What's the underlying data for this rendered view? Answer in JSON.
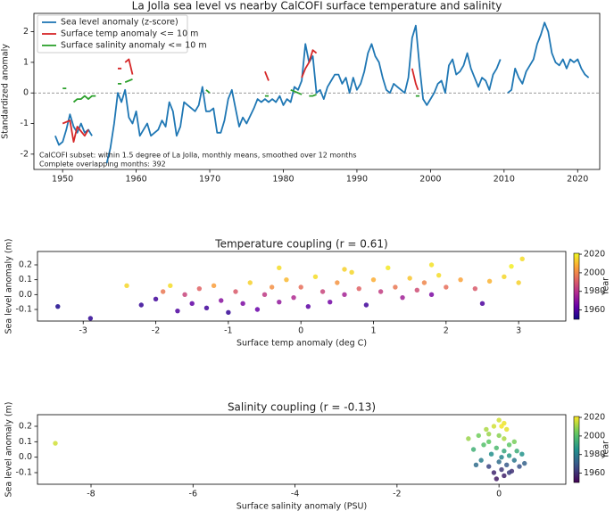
{
  "chart_data": [
    {
      "type": "line",
      "title": "La Jolla sea level vs nearby CalCOFI surface temperature and salinity",
      "ylabel": "Standardized anomaly",
      "xlim": [
        1946.1,
        2023.0
      ],
      "xticks": [
        1950,
        1960,
        1970,
        1980,
        1990,
        2000,
        2010,
        2020
      ],
      "ylim": [
        -2.5,
        2.6
      ],
      "yticks": [
        -2,
        -1,
        0,
        1,
        2
      ],
      "reference_line": 0,
      "legend": "upper left",
      "annotations": [
        "CalCOFI subset: within 1.5 degree of La Jolla, monthly means, smoothed over 12 months",
        "Complete overlapping months: 392"
      ],
      "series": [
        {
          "name": "Sea level anomaly (z-score)",
          "color": "#1f77b4",
          "x": [
            1949,
            1949.5,
            1950,
            1950.5,
            1951,
            1951.5,
            1952,
            1952.5,
            1953,
            1953.5,
            1954,
            1955,
            1956,
            1956.5,
            1957,
            1957.5,
            1958,
            1958.5,
            1959,
            1959.5,
            1960,
            1960.5,
            1961,
            1961.5,
            1962,
            1962.5,
            1963,
            1963.5,
            1964,
            1964.5,
            1965,
            1965.5,
            1966,
            1966.5,
            1967,
            1968,
            1968.5,
            1969,
            1969.5,
            1970,
            1970.5,
            1971,
            1971.5,
            1972,
            1972.5,
            1973,
            1973.5,
            1974,
            1974.5,
            1975,
            1976,
            1976.5,
            1977,
            1977.5,
            1978,
            1978.5,
            1979,
            1979.5,
            1980,
            1980.5,
            1981,
            1981.5,
            1982,
            1982.5,
            1983,
            1983.5,
            1984,
            1984.5,
            1985,
            1985.5,
            1986,
            1986.5,
            1987,
            1987.5,
            1988,
            1988.5,
            1989,
            1989.5,
            1990,
            1990.5,
            1991,
            1991.5,
            1992,
            1992.5,
            1993,
            1993.5,
            1994,
            1994.5,
            1995,
            1995.5,
            1996,
            1996.5,
            1997,
            1997.5,
            1998,
            1998.5,
            1999,
            1999.5,
            2000,
            2000.5,
            2001,
            2001.5,
            2002,
            2002.5,
            2003,
            2003.5,
            2004,
            2004.5,
            2005,
            2005.5,
            2006,
            2006.5,
            2007,
            2007.5,
            2008,
            2008.5,
            2009,
            2009.5,
            2010,
            2010.5,
            2011,
            2011.5,
            2012,
            2012.5,
            2013,
            2013.5,
            2014,
            2014.5,
            2015,
            2015.5,
            2016,
            2016.5,
            2017,
            2017.5,
            2018,
            2018.5,
            2019,
            2019.5,
            2020,
            2020.5,
            2021,
            2021.5
          ],
          "values": [
            -1.4,
            -1.7,
            -1.6,
            -1.2,
            -0.7,
            -1.1,
            -1.3,
            -1.0,
            -1.3,
            -1.2,
            -1.4,
            null,
            -2.3,
            -1.8,
            -1.0,
            0.0,
            -0.3,
            0.1,
            -0.8,
            -1.0,
            -0.6,
            -1.4,
            -1.2,
            -1.0,
            -1.4,
            -1.3,
            -1.2,
            -0.9,
            -1.1,
            -0.3,
            -0.6,
            -1.4,
            -1.1,
            -0.3,
            -0.4,
            -0.6,
            -0.4,
            0.2,
            -0.6,
            -0.6,
            -0.5,
            -1.3,
            -1.3,
            -0.9,
            -0.2,
            0.1,
            -0.5,
            -1.1,
            -0.8,
            -1.0,
            -0.5,
            -0.2,
            -0.3,
            -0.2,
            -0.3,
            -0.2,
            -0.3,
            -0.1,
            -0.4,
            -0.2,
            -0.3,
            0.2,
            0.1,
            0.4,
            1.6,
            1.0,
            1.2,
            0.0,
            0.1,
            -0.2,
            0.2,
            0.4,
            0.6,
            0.6,
            0.3,
            0.5,
            0.0,
            0.5,
            0.1,
            0.3,
            0.7,
            1.3,
            1.6,
            1.2,
            1.0,
            0.5,
            0.1,
            0.0,
            0.3,
            0.2,
            0.1,
            0.0,
            0.5,
            1.8,
            2.2,
            0.9,
            -0.2,
            -0.4,
            -0.2,
            0.0,
            0.3,
            0.4,
            0.0,
            0.9,
            1.1,
            0.6,
            0.7,
            0.9,
            1.3,
            0.8,
            0.5,
            0.2,
            0.5,
            0.4,
            0.1,
            0.6,
            0.8,
            1.1,
            null,
            0.0,
            0.1,
            0.8,
            0.5,
            0.3,
            0.7,
            0.9,
            1.1,
            1.6,
            1.9,
            2.3,
            2.0,
            1.3,
            1.0,
            0.9,
            1.1,
            0.8,
            1.1,
            1.0,
            1.1,
            0.8,
            0.6,
            0.5
          ]
        },
        {
          "name": "Surface temp anomaly <= 10 m",
          "color": "#d62728",
          "x": [
            1950,
            1951,
            1951.5,
            1952,
            1953,
            1953.5,
            1955,
            1957.5,
            1958,
            1958.3,
            1958.5,
            1959,
            1959.5,
            1960,
            1977.5,
            1978,
            1979,
            1982.5,
            1983,
            1983.5,
            1984,
            1984.5,
            1985,
            1997.5,
            1998,
            1998.3
          ],
          "values": [
            -1.0,
            -0.9,
            -1.6,
            -1.1,
            -1.4,
            -1.2,
            null,
            0.8,
            0.8,
            null,
            1.0,
            1.1,
            0.6,
            null,
            0.7,
            0.4,
            null,
            0.5,
            0.8,
            1.0,
            1.4,
            1.3,
            null,
            0.8,
            0.3,
            0.1
          ]
        },
        {
          "name": "Surface salinity anomaly <= 10 m",
          "color": "#2ca02c",
          "x": [
            1950,
            1950.5,
            1951,
            1951.5,
            1952,
            1952.5,
            1953,
            1953.5,
            1954,
            1954.5,
            1956,
            1957.5,
            1958,
            1958.3,
            1958.5,
            1959,
            1959.5,
            1960,
            1969.5,
            1970,
            1971,
            1977.5,
            1978,
            1979,
            1981,
            1982,
            1982.5,
            1983,
            1983.5,
            1984,
            1984.5,
            1985,
            1998,
            1998.5
          ],
          "values": [
            0.15,
            0.15,
            null,
            -0.3,
            -0.2,
            -0.2,
            -0.1,
            -0.2,
            -0.1,
            -0.1,
            null,
            0.3,
            0.3,
            null,
            0.35,
            0.4,
            0.45,
            null,
            0.1,
            0.0,
            null,
            -0.1,
            -0.1,
            null,
            0.1,
            0.0,
            -0.05,
            null,
            -0.1,
            -0.1,
            -0.05,
            null,
            -0.1,
            -0.1
          ]
        }
      ]
    },
    {
      "type": "scatter",
      "title": "Temperature coupling (r = 0.61)",
      "xlabel": "Surface temp anomaly (deg C)",
      "ylabel": "Sea level anomaly (m)",
      "xlim": [
        -3.63,
        3.65
      ],
      "xticks": [
        -3,
        -2,
        -1,
        0,
        1,
        2,
        3
      ],
      "ylim": [
        -0.178,
        0.29
      ],
      "yticks": [
        -0.1,
        {
          "value": 0,
          "label": "0.0"
        },
        0.1,
        0.2
      ],
      "colormap": "plasma",
      "clim": [
        1950,
        2021
      ],
      "cticks": [
        1960,
        1980,
        2000,
        2020
      ],
      "colorbar_label": "Year",
      "x": [
        -3.35,
        -2.9,
        -2.4,
        -2.2,
        -2.0,
        -1.9,
        -1.8,
        -1.7,
        -1.6,
        -1.5,
        -1.4,
        -1.3,
        -1.2,
        -1.1,
        -1.0,
        -0.9,
        -0.8,
        -0.7,
        -0.6,
        -0.5,
        -0.4,
        -0.3,
        -0.2,
        -0.1,
        0.0,
        0.1,
        0.2,
        0.3,
        0.4,
        0.5,
        0.6,
        0.7,
        0.8,
        0.9,
        1.0,
        1.1,
        1.2,
        1.3,
        1.4,
        1.5,
        1.6,
        1.7,
        1.8,
        1.9,
        2.0,
        2.2,
        2.4,
        2.5,
        2.6,
        2.8,
        2.9,
        3.05,
        3.0,
        -0.3,
        0.6,
        1.8
      ],
      "values": [
        -0.08,
        -0.16,
        0.06,
        -0.07,
        -0.03,
        0.02,
        0.06,
        -0.11,
        0.0,
        -0.06,
        0.04,
        -0.09,
        0.06,
        -0.04,
        -0.12,
        0.02,
        -0.06,
        0.08,
        -0.1,
        0.0,
        0.05,
        -0.05,
        0.1,
        -0.02,
        0.05,
        -0.08,
        0.12,
        0.02,
        -0.05,
        0.08,
        0.0,
        0.15,
        0.04,
        -0.07,
        0.1,
        0.02,
        0.18,
        0.05,
        -0.02,
        0.11,
        0.03,
        0.08,
        0.0,
        0.13,
        0.05,
        0.1,
        0.04,
        -0.06,
        0.09,
        0.12,
        0.19,
        0.24,
        0.08,
        0.18,
        0.17,
        0.2
      ],
      "c": [
        1952,
        1955,
        2015,
        1956,
        1958,
        1997,
        2016,
        1960,
        1985,
        1963,
        1992,
        1958,
        2005,
        1970,
        1956,
        1990,
        1968,
        2014,
        1964,
        1982,
        2002,
        1972,
        2010,
        1978,
        1995,
        1962,
        2016,
        1985,
        1966,
        2003,
        1976,
        2015,
        1992,
        1958,
        2008,
        1983,
        2018,
        1997,
        1975,
        2012,
        1987,
        2000,
        1968,
        2016,
        1995,
        2006,
        1990,
        1960,
        2009,
        2015,
        2019,
        2016,
        2014,
        2016,
        2014,
        2017
      ]
    },
    {
      "type": "scatter",
      "title": "Salinity coupling (r = -0.13)",
      "xlabel": "Surface salinity anomaly (PSU)",
      "ylabel": "Sea level anomaly (m)",
      "xlim": [
        -9.05,
        1.31
      ],
      "xticks": [
        -8,
        -6,
        -4,
        -2,
        0
      ],
      "ylim": [
        -0.175,
        0.275
      ],
      "yticks": [
        -0.1,
        {
          "value": 0,
          "label": "0.0"
        },
        0.1,
        0.2
      ],
      "colormap": "viridis",
      "clim": [
        1950,
        2021
      ],
      "cticks": [
        1960,
        1980,
        2000,
        2020
      ],
      "colorbar_label": "Year",
      "x": [
        -8.7,
        -0.6,
        -0.5,
        -0.4,
        -0.35,
        -0.3,
        -0.25,
        -0.2,
        -0.2,
        -0.15,
        -0.1,
        -0.1,
        -0.05,
        0.0,
        0.0,
        0.0,
        0.05,
        0.05,
        0.1,
        0.1,
        0.1,
        0.15,
        0.15,
        0.2,
        0.2,
        0.25,
        0.3,
        0.3,
        0.35,
        0.4,
        0.45,
        0.5,
        -0.05,
        0.05,
        -0.2,
        0.2,
        0.1,
        -0.45
      ],
      "values": [
        0.09,
        0.12,
        0.05,
        0.14,
        -0.02,
        0.08,
        0.18,
        -0.06,
        0.1,
        0.02,
        0.2,
        -0.1,
        0.06,
        0.14,
        -0.03,
        0.24,
        0.0,
        -0.08,
        0.12,
        0.04,
        -0.12,
        0.18,
        -0.05,
        0.08,
        0.01,
        -0.09,
        0.1,
        -0.02,
        0.04,
        -0.06,
        0.02,
        -0.04,
        -0.14,
        0.2,
        0.15,
        -0.1,
        0.22,
        -0.05
      ],
      "c": [
        2016,
        2010,
        1995,
        2005,
        1980,
        2000,
        2012,
        1965,
        2003,
        1985,
        2016,
        1958,
        1998,
        2008,
        1975,
        2016,
        1982,
        1962,
        2012,
        1992,
        1957,
        2018,
        1970,
        2002,
        1988,
        1960,
        2006,
        1978,
        1994,
        1968,
        1986,
        1972,
        1955,
        2020,
        2010,
        1964,
        2019,
        1975
      ]
    }
  ]
}
